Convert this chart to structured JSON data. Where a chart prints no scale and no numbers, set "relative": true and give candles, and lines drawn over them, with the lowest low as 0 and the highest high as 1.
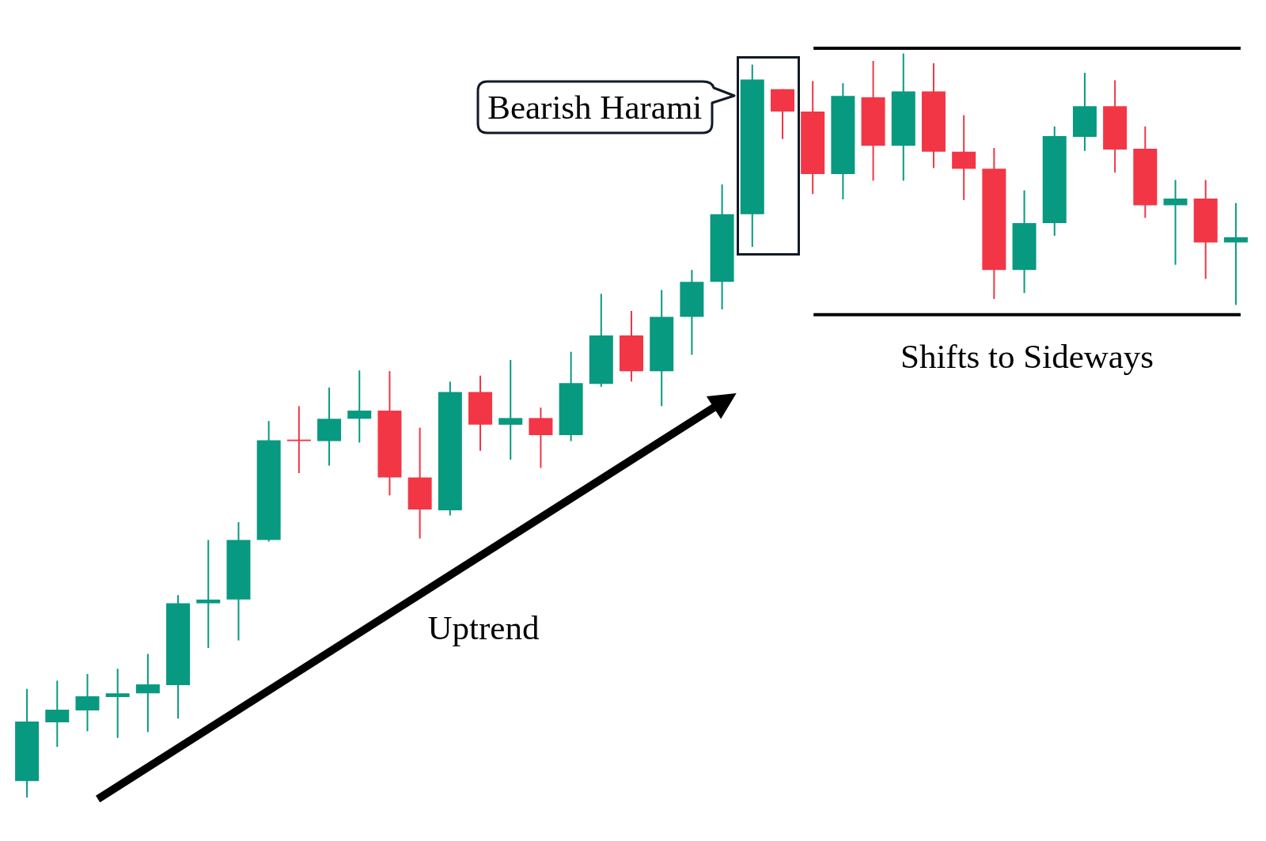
{
  "chart_data": {
    "type": "candlestick",
    "relative": true,
    "categories": [
      null,
      null,
      null,
      null,
      null,
      null,
      null,
      null,
      null,
      null,
      null,
      null,
      null,
      null,
      null,
      null,
      null,
      null,
      null,
      null,
      null,
      null,
      null,
      null,
      null,
      null,
      null,
      null,
      null,
      null,
      null,
      null,
      null,
      null,
      null,
      null,
      null,
      null,
      null,
      null,
      null
    ],
    "ohlc": [
      [
        0.022,
        0.146,
        0,
        0.102
      ],
      [
        0.101,
        0.157,
        0.068,
        0.118
      ],
      [
        0.117,
        0.166,
        0.089,
        0.136
      ],
      [
        0.135,
        0.173,
        0.08,
        0.14
      ],
      [
        0.14,
        0.193,
        0.088,
        0.152
      ],
      [
        0.151,
        0.272,
        0.106,
        0.261
      ],
      [
        0.261,
        0.346,
        0.201,
        0.266
      ],
      [
        0.266,
        0.37,
        0.211,
        0.346
      ],
      [
        0.346,
        0.506,
        0.344,
        0.48
      ],
      [
        0.481,
        0.526,
        0.436,
        0.479
      ],
      [
        0.479,
        0.551,
        0.446,
        0.509
      ],
      [
        0.509,
        0.574,
        0.477,
        0.52
      ],
      [
        0.52,
        0.573,
        0.406,
        0.43
      ],
      [
        0.43,
        0.497,
        0.348,
        0.387
      ],
      [
        0.386,
        0.559,
        0.379,
        0.545
      ],
      [
        0.545,
        0.567,
        0.466,
        0.501
      ],
      [
        0.501,
        0.588,
        0.454,
        0.51
      ],
      [
        0.51,
        0.524,
        0.443,
        0.487
      ],
      [
        0.487,
        0.599,
        0.479,
        0.557
      ],
      [
        0.556,
        0.677,
        0.552,
        0.621
      ],
      [
        0.621,
        0.654,
        0.559,
        0.573
      ],
      [
        0.573,
        0.682,
        0.526,
        0.646
      ],
      [
        0.646,
        0.709,
        0.595,
        0.693
      ],
      [
        0.693,
        0.824,
        0.656,
        0.784
      ],
      [
        0.784,
        0.985,
        0.74,
        0.965
      ],
      [
        0.952,
        0.952,
        0.885,
        0.922
      ],
      [
        0.922,
        0.963,
        0.811,
        0.838
      ],
      [
        0.838,
        0.96,
        0.804,
        0.943
      ],
      [
        0.941,
        0.99,
        0.829,
        0.876
      ],
      [
        0.876,
        1.0,
        0.829,
        0.949
      ],
      [
        0.949,
        0.987,
        0.846,
        0.868
      ],
      [
        0.868,
        0.917,
        0.803,
        0.845
      ],
      [
        0.845,
        0.873,
        0.67,
        0.709
      ],
      [
        0.709,
        0.816,
        0.678,
        0.772
      ],
      [
        0.772,
        0.902,
        0.755,
        0.889
      ],
      [
        0.888,
        0.974,
        0.869,
        0.929
      ],
      [
        0.929,
        0.964,
        0.84,
        0.871
      ],
      [
        0.872,
        0.902,
        0.779,
        0.796
      ],
      [
        0.796,
        0.83,
        0.716,
        0.805
      ],
      [
        0.805,
        0.83,
        0.697,
        0.746
      ],
      [
        0.746,
        0.799,
        0.662,
        0.753
      ]
    ],
    "colors": [
      "#089981",
      "#089981",
      "#089981",
      "#089981",
      "#089981",
      "#089981",
      "#089981",
      "#089981",
      "#089981",
      "#f23645",
      "#089981",
      "#089981",
      "#f23645",
      "#f23645",
      "#089981",
      "#f23645",
      "#089981",
      "#f23645",
      "#089981",
      "#089981",
      "#f23645",
      "#089981",
      "#089981",
      "#089981",
      "#089981",
      "#f23645",
      "#f23645",
      "#089981",
      "#f23645",
      "#089981",
      "#f23645",
      "#f23645",
      "#f23645",
      "#089981",
      "#089981",
      "#089981",
      "#f23645",
      "#f23645",
      "#089981",
      "#f23645",
      "#089981"
    ],
    "ref_lines": [
      {
        "axis": "y",
        "value": 1.007,
        "color": "#000000"
      },
      {
        "axis": "y",
        "value": 0.649,
        "color": "#000000",
        "label": "Shifts to Sideways"
      }
    ],
    "annotations": [
      "Bearish Harami",
      "Uptrend"
    ]
  }
}
